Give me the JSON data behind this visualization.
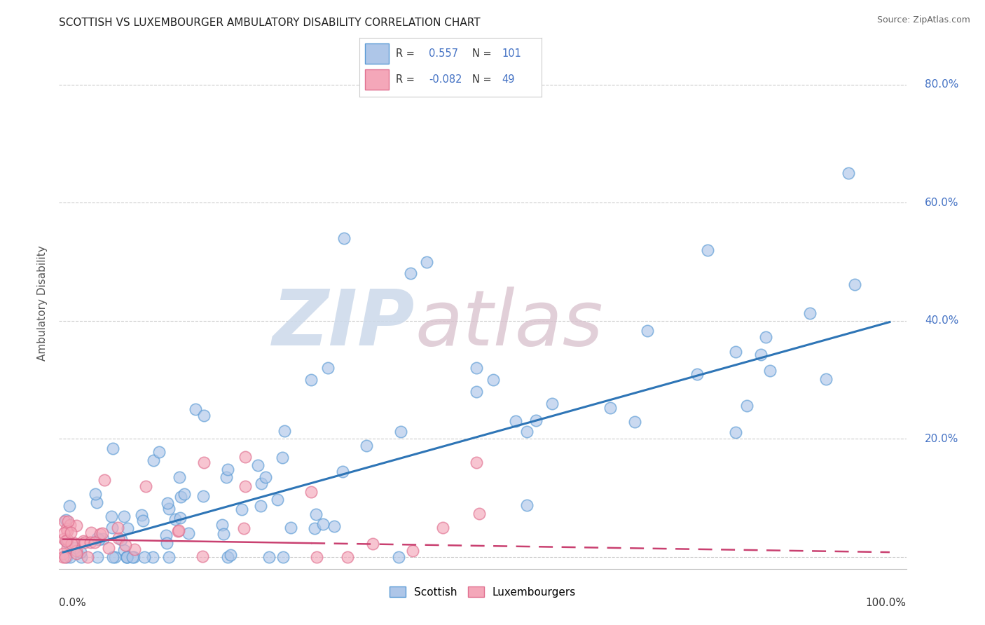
{
  "title": "SCOTTISH VS LUXEMBOURGER AMBULATORY DISABILITY CORRELATION CHART",
  "source": "Source: ZipAtlas.com",
  "ylabel": "Ambulatory Disability",
  "blue_R": 0.557,
  "blue_N": 101,
  "pink_R": -0.082,
  "pink_N": 49,
  "blue_fill_color": "#aec6e8",
  "blue_edge_color": "#5b9bd5",
  "pink_fill_color": "#f4a7b9",
  "pink_edge_color": "#e07090",
  "blue_line_color": "#2e75b6",
  "pink_line_color": "#c94070",
  "legend_label_blue": "Scottish",
  "legend_label_pink": "Luxembourgers",
  "watermark_zip_color": "#ccd9ea",
  "watermark_atlas_color": "#d8c0cc",
  "title_fontsize": 11,
  "source_fontsize": 9,
  "axis_label_color": "#4472c4",
  "ylabel_color": "#555555"
}
